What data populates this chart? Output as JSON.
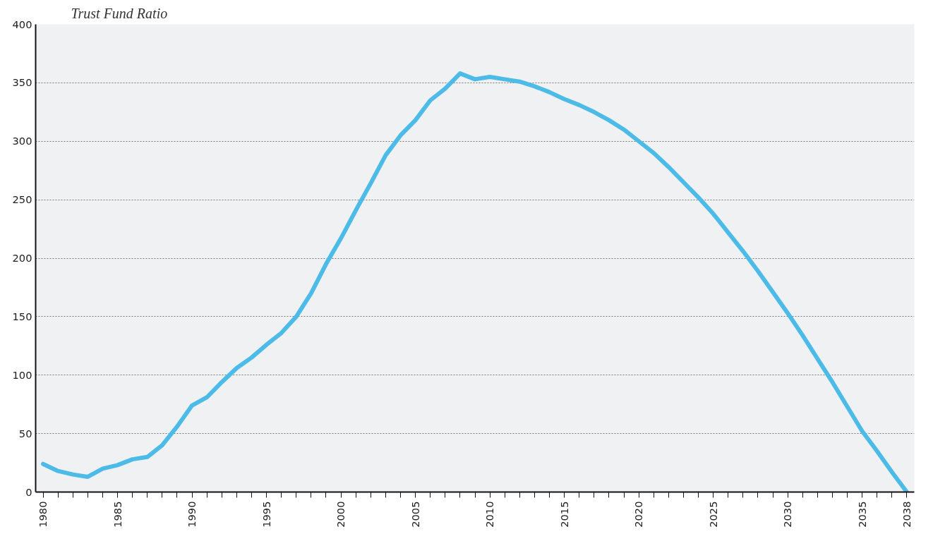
{
  "chart_data": {
    "type": "line",
    "title": "Trust Fund Ratio",
    "x": [
      1980,
      1981,
      1982,
      1983,
      1984,
      1985,
      1986,
      1987,
      1988,
      1989,
      1990,
      1991,
      1992,
      1993,
      1994,
      1995,
      1996,
      1997,
      1998,
      1999,
      2000,
      2001,
      2002,
      2003,
      2004,
      2005,
      2006,
      2007,
      2008,
      2009,
      2010,
      2011,
      2012,
      2013,
      2014,
      2015,
      2016,
      2017,
      2018,
      2019,
      2020,
      2021,
      2022,
      2023,
      2024,
      2025,
      2026,
      2027,
      2028,
      2029,
      2030,
      2031,
      2032,
      2033,
      2034,
      2035,
      2036,
      2037,
      2038
    ],
    "series": [
      {
        "color": "#4dbbe8",
        "values": [
          24,
          18,
          15,
          13,
          20,
          23,
          28,
          30,
          40,
          56,
          74,
          81,
          94,
          106,
          115,
          126,
          136,
          150,
          170,
          195,
          217,
          241,
          264,
          288,
          305,
          318,
          335,
          345,
          358,
          353,
          355,
          353,
          351,
          347,
          342,
          336,
          331,
          325,
          318,
          310,
          300,
          290,
          278,
          265,
          252,
          238,
          222,
          206,
          189,
          171,
          153,
          134,
          114,
          94,
          73,
          52,
          35,
          17,
          0
        ]
      }
    ],
    "xlim": [
      1979.5,
      2038.5
    ],
    "ylim": [
      0,
      400
    ],
    "xticks": [
      1980,
      {
        "value": 1981,
        "label": null
      },
      {
        "value": 1982,
        "label": null
      },
      {
        "value": 1983,
        "label": null
      },
      {
        "value": 1984,
        "label": null
      },
      1985,
      {
        "value": 1986,
        "label": null
      },
      {
        "value": 1987,
        "label": null
      },
      {
        "value": 1988,
        "label": null
      },
      {
        "value": 1989,
        "label": null
      },
      1990,
      {
        "value": 1991,
        "label": null
      },
      {
        "value": 1992,
        "label": null
      },
      {
        "value": 1993,
        "label": null
      },
      {
        "value": 1994,
        "label": null
      },
      1995,
      {
        "value": 1996,
        "label": null
      },
      {
        "value": 1997,
        "label": null
      },
      {
        "value": 1998,
        "label": null
      },
      {
        "value": 1999,
        "label": null
      },
      2000,
      {
        "value": 2001,
        "label": null
      },
      {
        "value": 2002,
        "label": null
      },
      {
        "value": 2003,
        "label": null
      },
      {
        "value": 2004,
        "label": null
      },
      2005,
      {
        "value": 2006,
        "label": null
      },
      {
        "value": 2007,
        "label": null
      },
      {
        "value": 2008,
        "label": null
      },
      {
        "value": 2009,
        "label": null
      },
      2010,
      {
        "value": 2011,
        "label": null
      },
      {
        "value": 2012,
        "label": null
      },
      {
        "value": 2013,
        "label": null
      },
      {
        "value": 2014,
        "label": null
      },
      2015,
      {
        "value": 2016,
        "label": null
      },
      {
        "value": 2017,
        "label": null
      },
      {
        "value": 2018,
        "label": null
      },
      {
        "value": 2019,
        "label": null
      },
      2020,
      {
        "value": 2021,
        "label": null
      },
      {
        "value": 2022,
        "label": null
      },
      {
        "value": 2023,
        "label": null
      },
      {
        "value": 2024,
        "label": null
      },
      2025,
      {
        "value": 2026,
        "label": null
      },
      {
        "value": 2027,
        "label": null
      },
      {
        "value": 2028,
        "label": null
      },
      {
        "value": 2029,
        "label": null
      },
      2030,
      {
        "value": 2031,
        "label": null
      },
      {
        "value": 2032,
        "label": null
      },
      {
        "value": 2033,
        "label": null
      },
      {
        "value": 2034,
        "label": null
      },
      2035,
      {
        "value": 2036,
        "label": null
      },
      {
        "value": 2037,
        "label": null
      },
      2038
    ],
    "yticks": [
      0,
      50,
      100,
      150,
      200,
      250,
      300,
      350,
      400
    ],
    "grid": "y",
    "marker": "none",
    "line_style": "solid"
  }
}
